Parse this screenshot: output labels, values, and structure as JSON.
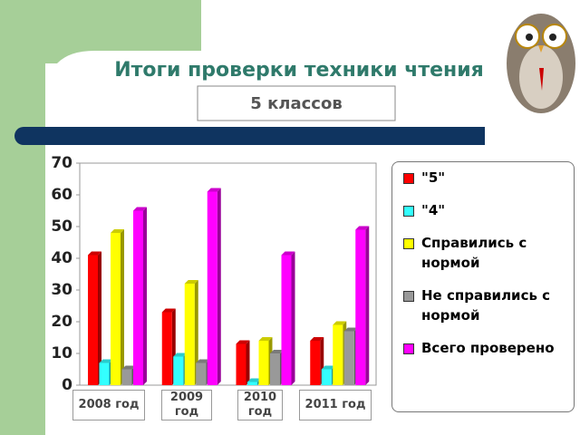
{
  "chart_data": {
    "type": "bar",
    "title": "Итоги проверки техники чтения",
    "subtitle": "5 классов",
    "categories": [
      "2008 год",
      "2009 год",
      "2010 год",
      "2011 год"
    ],
    "series": [
      {
        "name": "\"5\"",
        "color": "#ff0000",
        "values": [
          41,
          23,
          13,
          14
        ]
      },
      {
        "name": "\"4\"",
        "color": "#33ffff",
        "values": [
          7,
          9,
          1,
          5
        ]
      },
      {
        "name": "Справились с нормой",
        "color": "#ffff00",
        "values": [
          48,
          32,
          14,
          19
        ]
      },
      {
        "name": "Не справились с нормой",
        "color": "#999999",
        "values": [
          5,
          7,
          10,
          17
        ]
      },
      {
        "name": "Всего проверено",
        "color": "#ff00ff",
        "values": [
          55,
          61,
          41,
          49
        ]
      }
    ],
    "ylim": [
      0,
      70
    ],
    "yticks": [
      0,
      10,
      20,
      30,
      40,
      50,
      60,
      70
    ],
    "grid": false,
    "legend": "right"
  }
}
